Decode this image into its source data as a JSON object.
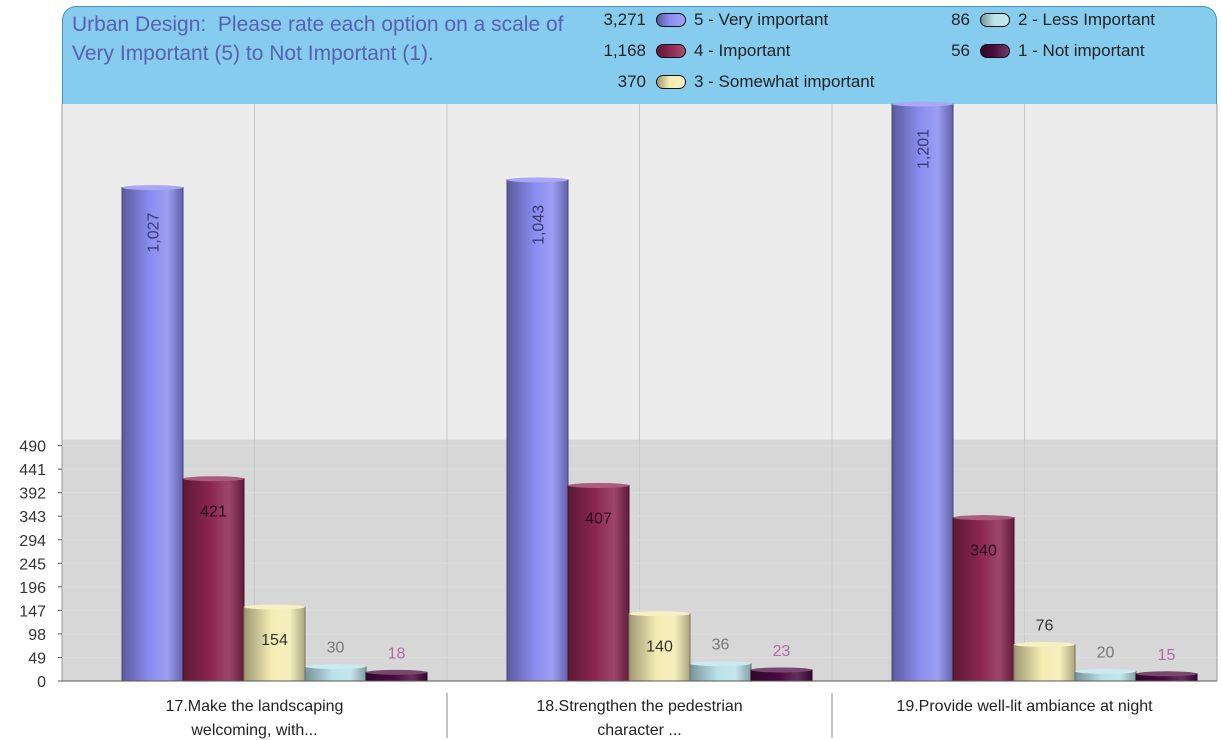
{
  "chart_data": {
    "type": "bar",
    "title": "Urban Design:  Please rate each option on a scale of Very Important (5) to Not Important (1).",
    "categories": [
      [
        "17.Make the landscaping",
        "welcoming, with..."
      ],
      [
        "18.Strengthen the pedestrian",
        "character ..."
      ],
      [
        "19.Provide well-lit ambiance at night"
      ]
    ],
    "series": [
      {
        "name": "5 - Very important",
        "total": "3,271",
        "values": [
          1027,
          1043,
          1201
        ],
        "labels": [
          "1,027",
          "1,043",
          "1,201"
        ],
        "color": "#8a8cf0"
      },
      {
        "name": "4 - Important",
        "total": "1,168",
        "values": [
          421,
          407,
          340
        ],
        "labels": [
          "421",
          "407",
          "340"
        ],
        "color": "#8c2650"
      },
      {
        "name": "3 - Somewhat important",
        "total": "370",
        "values": [
          154,
          140,
          76
        ],
        "labels": [
          "154",
          "140",
          "76"
        ],
        "color": "#f3ecb2"
      },
      {
        "name": "2 - Less Important",
        "total": "86",
        "values": [
          30,
          36,
          20
        ],
        "labels": [
          "30",
          "36",
          "20"
        ],
        "color": "#b9e2e8"
      },
      {
        "name": "1 - Not important",
        "total": "56",
        "values": [
          18,
          23,
          15
        ],
        "labels": [
          "18",
          "23",
          "15"
        ],
        "color": "#4a0a40"
      }
    ],
    "yticks": [
      0,
      49,
      98,
      147,
      196,
      245,
      294,
      343,
      392,
      441,
      490
    ],
    "ylim": [
      0,
      1201
    ],
    "grid": true,
    "legend_position": "top"
  }
}
